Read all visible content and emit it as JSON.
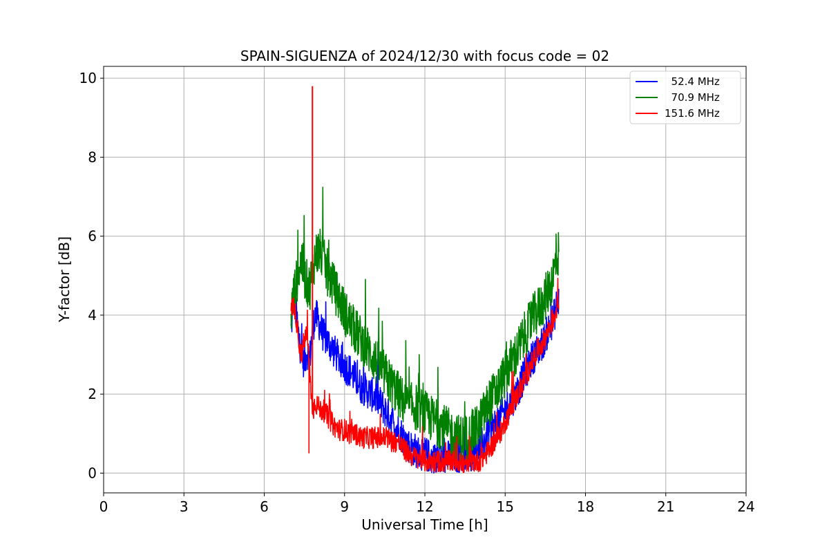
{
  "chart_data": {
    "type": "line",
    "title": "SPAIN-SIGUENZA of 2024/12/30 with focus code = 02",
    "xlabel": "Universal Time [h]",
    "ylabel": "Y-factor [dB]",
    "xlim": [
      0,
      24
    ],
    "ylim": [
      -0.5,
      10.3
    ],
    "xticks": [
      0,
      3,
      6,
      9,
      12,
      15,
      18,
      21,
      24
    ],
    "yticks": [
      0,
      2,
      4,
      6,
      8,
      10
    ],
    "grid": true,
    "legend_position": "top-right",
    "series": [
      {
        "name": "  52.4 MHz",
        "color": "#0000ff",
        "x": [
          7.0,
          7.1,
          7.2,
          7.3,
          7.4,
          7.5,
          7.6,
          7.7,
          7.8,
          7.9,
          8.0,
          8.1,
          8.2,
          8.3,
          8.4,
          8.5,
          8.6,
          8.8,
          9.0,
          9.2,
          9.4,
          9.6,
          9.8,
          10.0,
          10.2,
          10.4,
          10.6,
          10.8,
          11.0,
          11.2,
          11.4,
          11.6,
          11.8,
          12.0,
          12.2,
          12.4,
          12.6,
          12.8,
          13.0,
          13.2,
          13.4,
          13.6,
          13.8,
          14.0,
          14.2,
          14.4,
          14.6,
          14.8,
          15.0,
          15.2,
          15.4,
          15.6,
          15.8,
          16.0,
          16.2,
          16.4,
          16.6,
          16.8,
          16.9,
          17.0
        ],
        "y": [
          3.6,
          4.4,
          4.0,
          3.4,
          3.0,
          2.8,
          3.1,
          2.9,
          3.6,
          4.0,
          3.9,
          3.7,
          3.5,
          3.4,
          3.3,
          3.2,
          3.1,
          2.9,
          2.7,
          2.6,
          2.4,
          2.2,
          2.1,
          2.0,
          1.9,
          1.7,
          1.5,
          1.3,
          1.1,
          0.9,
          0.7,
          0.6,
          0.5,
          0.5,
          0.4,
          0.4,
          0.4,
          0.4,
          0.4,
          0.4,
          0.4,
          0.4,
          0.5,
          0.6,
          0.8,
          1.1,
          1.2,
          1.4,
          1.6,
          1.8,
          2.0,
          2.3,
          2.6,
          2.9,
          3.1,
          3.3,
          3.6,
          3.9,
          4.2,
          4.4
        ]
      },
      {
        "name": "  70.9 MHz",
        "color": "#008000",
        "x": [
          7.0,
          7.1,
          7.2,
          7.3,
          7.4,
          7.5,
          7.6,
          7.7,
          7.8,
          7.9,
          8.0,
          8.1,
          8.2,
          8.3,
          8.4,
          8.5,
          8.6,
          8.8,
          9.0,
          9.2,
          9.4,
          9.6,
          9.8,
          10.0,
          10.2,
          10.4,
          10.6,
          10.8,
          11.0,
          11.2,
          11.4,
          11.6,
          11.8,
          12.0,
          12.2,
          12.4,
          12.6,
          12.8,
          13.0,
          13.2,
          13.4,
          13.6,
          13.8,
          14.0,
          14.2,
          14.4,
          14.6,
          14.8,
          15.0,
          15.2,
          15.4,
          15.6,
          15.8,
          16.0,
          16.2,
          16.4,
          16.6,
          16.8,
          16.9,
          17.0
        ],
        "y": [
          4.0,
          4.5,
          4.8,
          5.2,
          5.4,
          5.0,
          4.8,
          4.7,
          5.1,
          5.5,
          5.6,
          5.6,
          5.4,
          5.2,
          5.0,
          4.9,
          4.7,
          4.4,
          4.1,
          3.8,
          3.6,
          3.4,
          3.2,
          3.0,
          2.8,
          2.6,
          2.4,
          2.2,
          2.0,
          1.8,
          1.7,
          1.7,
          1.6,
          1.5,
          1.4,
          1.3,
          1.2,
          1.1,
          1.0,
          0.9,
          0.9,
          0.9,
          1.0,
          1.2,
          1.5,
          1.8,
          2.0,
          2.2,
          2.5,
          2.8,
          3.0,
          3.3,
          3.6,
          3.9,
          4.1,
          4.3,
          4.6,
          5.0,
          5.4,
          5.6
        ]
      },
      {
        "name": "151.6 MHz",
        "color": "#ff0000",
        "x": [
          7.0,
          7.1,
          7.2,
          7.3,
          7.4,
          7.5,
          7.6,
          7.7,
          7.8,
          7.9,
          8.0,
          8.1,
          8.2,
          8.3,
          8.4,
          8.5,
          8.6,
          8.8,
          9.0,
          9.2,
          9.4,
          9.6,
          9.8,
          10.0,
          10.2,
          10.4,
          10.6,
          10.8,
          11.0,
          11.2,
          11.4,
          11.6,
          11.8,
          12.0,
          12.2,
          12.4,
          12.6,
          12.8,
          13.0,
          13.2,
          13.4,
          13.6,
          13.8,
          14.0,
          14.2,
          14.4,
          14.6,
          14.8,
          15.0,
          15.2,
          15.4,
          15.6,
          15.8,
          16.0,
          16.2,
          16.4,
          16.6,
          16.8,
          16.9,
          17.0
        ],
        "y": [
          4.1,
          4.3,
          3.9,
          3.3,
          3.0,
          3.4,
          3.5,
          2.6,
          1.5,
          1.8,
          1.7,
          1.6,
          1.6,
          1.5,
          1.4,
          1.3,
          1.2,
          1.1,
          1.1,
          1.0,
          1.0,
          0.9,
          0.9,
          0.9,
          0.9,
          0.9,
          0.9,
          0.8,
          0.8,
          0.6,
          0.5,
          0.4,
          0.4,
          0.3,
          0.3,
          0.3,
          0.3,
          0.3,
          0.3,
          0.3,
          0.2,
          0.2,
          0.3,
          0.3,
          0.4,
          0.6,
          0.8,
          1.0,
          1.3,
          1.6,
          1.9,
          2.2,
          2.5,
          2.8,
          3.1,
          3.3,
          3.6,
          3.9,
          4.1,
          4.4
        ]
      }
    ],
    "annotations": [
      {
        "series": "151.6 MHz",
        "x": 7.8,
        "y": 9.8
      }
    ]
  }
}
